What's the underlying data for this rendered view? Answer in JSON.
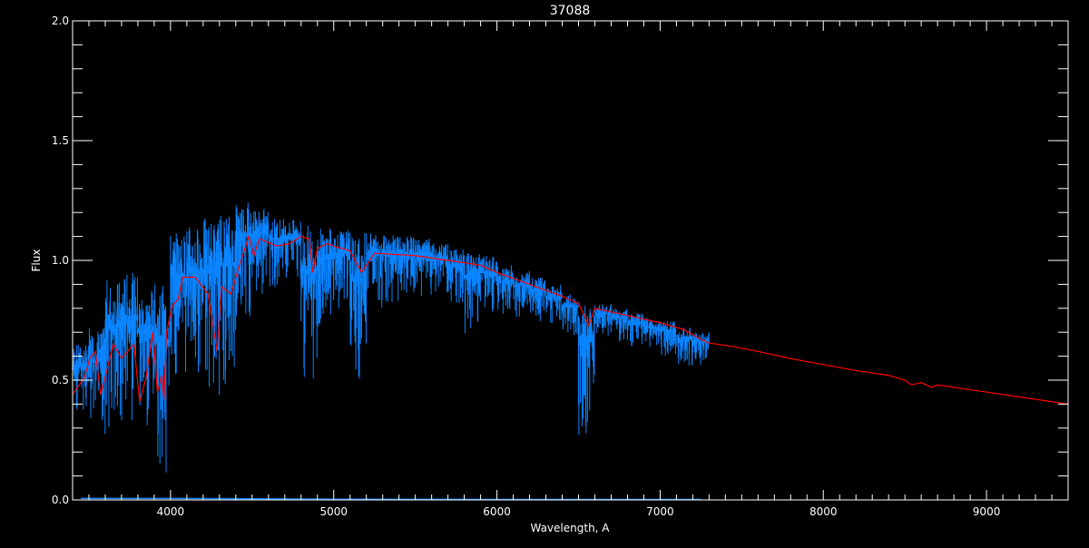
{
  "chart_data": {
    "type": "line",
    "title": "37088",
    "xlabel": "Wavelength, A",
    "ylabel": "Flux",
    "xlim": [
      3400,
      9500
    ],
    "ylim": [
      0.0,
      2.0
    ],
    "xticks": [
      4000,
      5000,
      6000,
      7000,
      8000,
      9000
    ],
    "xtick_labels": [
      "4000",
      "5000",
      "6000",
      "7000",
      "8000",
      "9000"
    ],
    "yticks": [
      0.0,
      0.5,
      1.0,
      1.5,
      2.0
    ],
    "ytick_labels": [
      "0.0",
      "0.5",
      "1.0",
      "1.5",
      "2.0"
    ],
    "grid": false,
    "background": "#000000",
    "series": [
      {
        "kind": "observed-spectrum-envelope",
        "color": "#0a84ff",
        "bin_center": [
          3450,
          3550,
          3650,
          3750,
          3850,
          3950,
          4050,
          4150,
          4250,
          4350,
          4450,
          4550,
          4650,
          4750,
          4850,
          4950,
          5050,
          5150,
          5250,
          5350,
          5450,
          5550,
          5650,
          5750,
          5850,
          5950,
          6050,
          6150,
          6250,
          6350,
          6450,
          6550,
          6650,
          6750,
          6850,
          6950,
          7050,
          7150,
          7250
        ],
        "low": [
          0.35,
          0.25,
          0.25,
          0.28,
          0.27,
          0.1,
          0.5,
          0.5,
          0.42,
          0.47,
          0.75,
          0.85,
          0.88,
          0.92,
          0.5,
          0.7,
          0.8,
          0.45,
          0.8,
          0.82,
          0.85,
          0.85,
          0.85,
          0.8,
          0.68,
          0.78,
          0.75,
          0.75,
          0.74,
          0.73,
          0.68,
          0.27,
          0.68,
          0.66,
          0.64,
          0.62,
          0.6,
          0.56,
          0.56
        ],
        "high": [
          0.65,
          0.72,
          0.92,
          0.95,
          0.88,
          0.9,
          1.12,
          1.15,
          1.18,
          1.2,
          1.26,
          1.22,
          1.18,
          1.17,
          1.15,
          1.14,
          1.13,
          1.12,
          1.12,
          1.12,
          1.1,
          1.09,
          1.07,
          1.05,
          1.04,
          1.02,
          0.98,
          0.96,
          0.93,
          0.9,
          0.86,
          0.83,
          0.82,
          0.8,
          0.78,
          0.76,
          0.75,
          0.72,
          0.7
        ]
      },
      {
        "kind": "error",
        "color": "#0a84ff",
        "x": [
          3450,
          4000,
          4800,
          5000,
          6000,
          7250
        ],
        "y": [
          0.006,
          0.006,
          0.004,
          0.003,
          0.002,
          0.002
        ]
      },
      {
        "kind": "model",
        "color": "#ff0000",
        "x": [
          3400,
          3472,
          3505,
          3539,
          3572,
          3650,
          3700,
          3775,
          3811,
          3850,
          3891,
          3920,
          3945,
          3960,
          3975,
          4011,
          4048,
          4074,
          4150,
          4230,
          4285,
          4313,
          4370,
          4418,
          4480,
          4510,
          4546,
          4650,
          4729,
          4800,
          4850,
          4870,
          4900,
          4960,
          5000,
          5100,
          5170,
          5250,
          5500,
          5700,
          5900,
          6000,
          6200,
          6400,
          6500,
          6563,
          6600,
          6800,
          7000,
          7150,
          7250,
          7300,
          7450,
          7600,
          7800,
          8000,
          8200,
          8400,
          8500,
          8540,
          8600,
          8662,
          8700,
          8900,
          9000,
          9200,
          9400,
          9500
        ],
        "y": [
          0.44,
          0.51,
          0.59,
          0.62,
          0.44,
          0.65,
          0.59,
          0.65,
          0.41,
          0.51,
          0.7,
          0.45,
          0.52,
          0.42,
          0.7,
          0.81,
          0.84,
          0.93,
          0.93,
          0.86,
          0.62,
          0.89,
          0.86,
          0.97,
          1.1,
          1.02,
          1.09,
          1.06,
          1.07,
          1.1,
          1.09,
          0.95,
          1.05,
          1.07,
          1.06,
          1.04,
          0.95,
          1.03,
          1.02,
          1.0,
          0.98,
          0.95,
          0.9,
          0.85,
          0.82,
          0.73,
          0.8,
          0.77,
          0.74,
          0.71,
          0.67,
          0.655,
          0.64,
          0.62,
          0.59,
          0.565,
          0.54,
          0.52,
          0.5,
          0.48,
          0.49,
          0.47,
          0.48,
          0.46,
          0.45,
          0.43,
          0.41,
          0.4
        ]
      }
    ]
  }
}
